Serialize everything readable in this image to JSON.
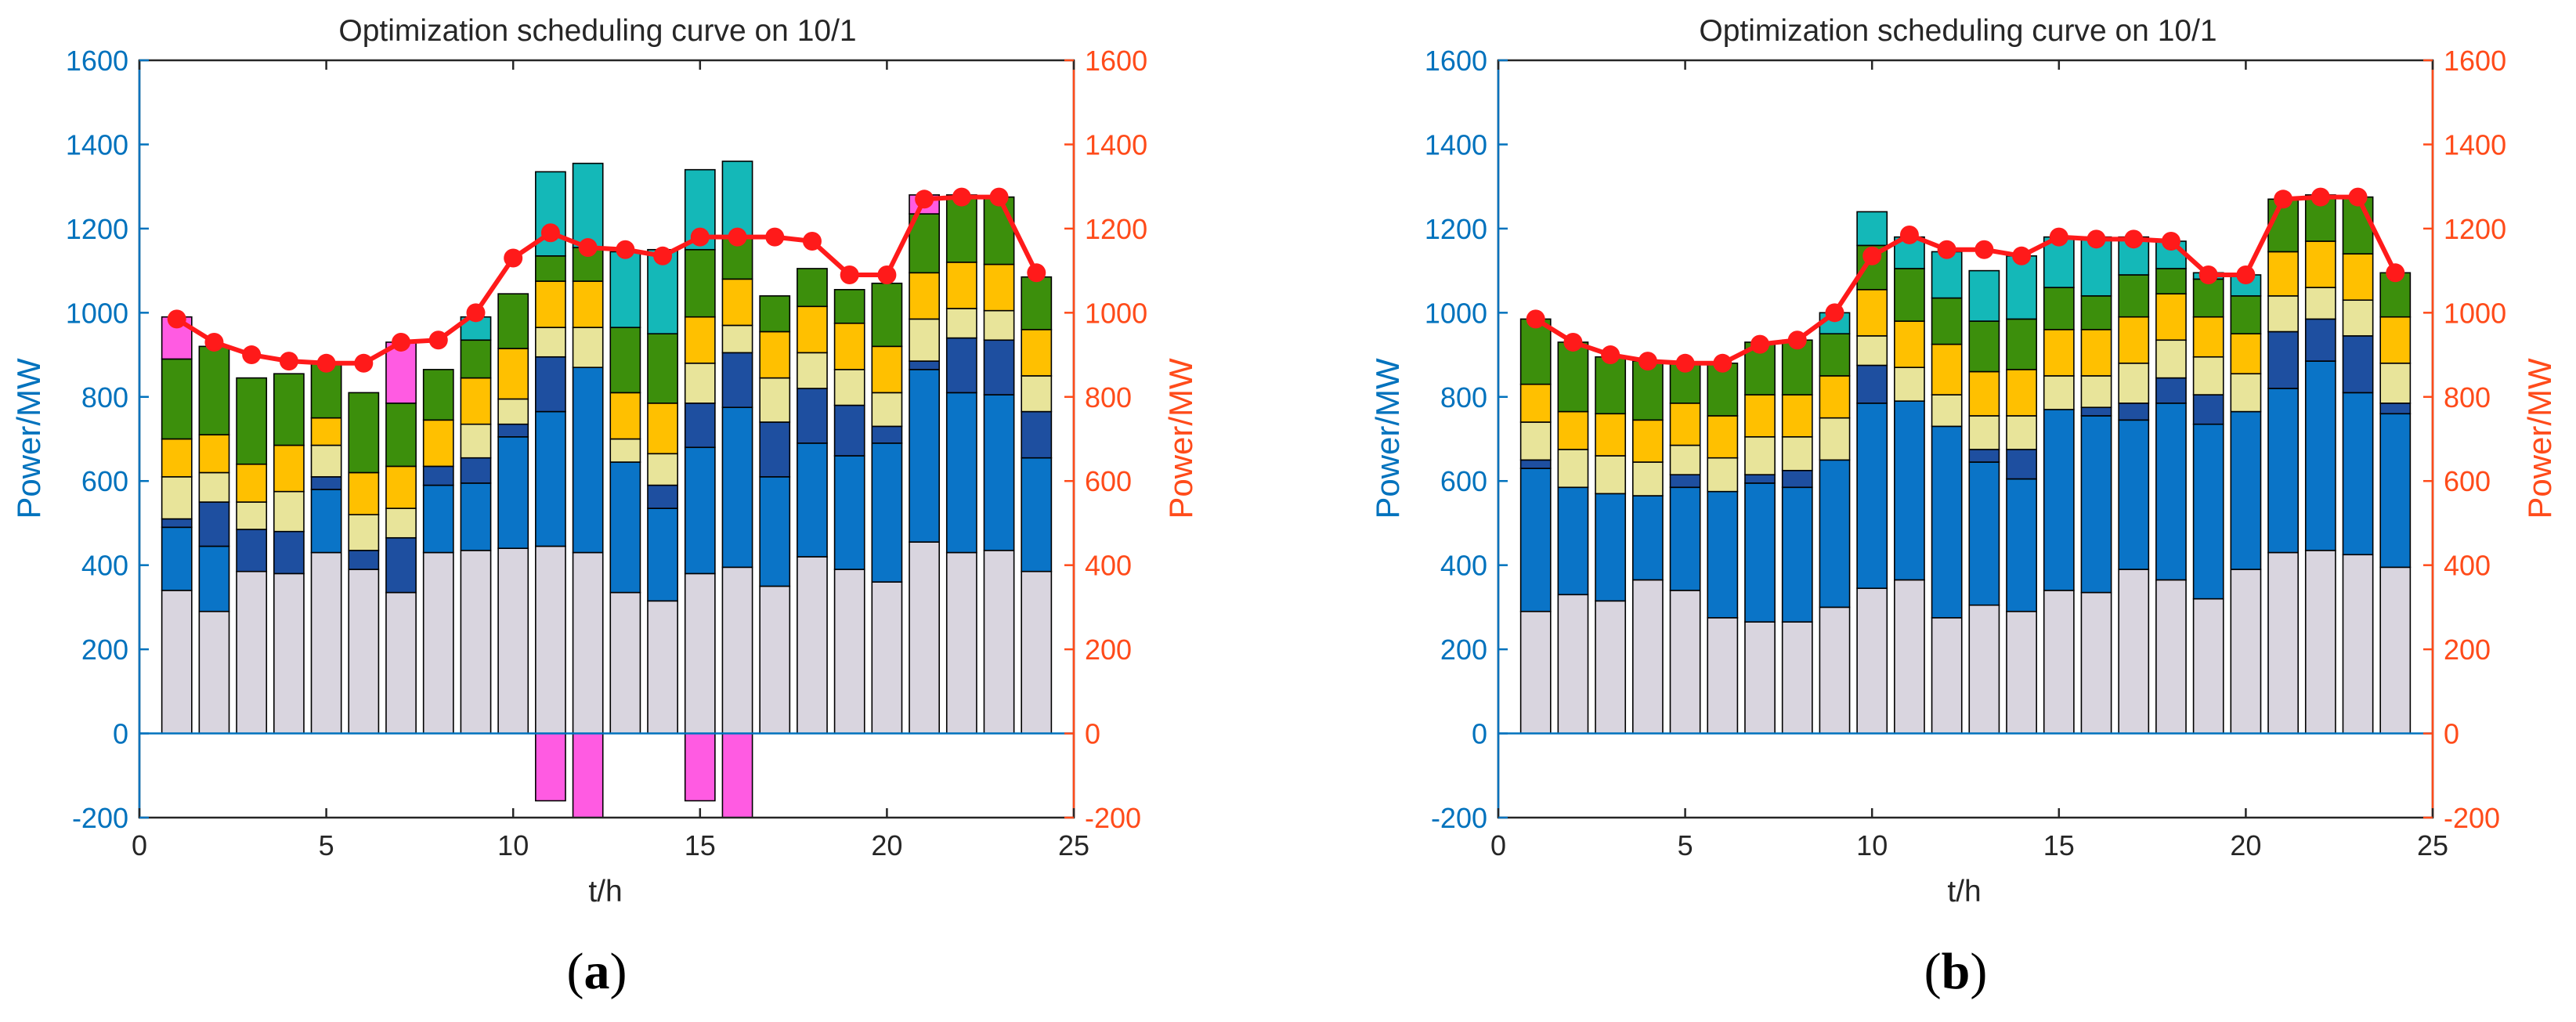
{
  "chart_data": [
    {
      "type": "bar",
      "subtype": "stacked-bar-with-line",
      "panel_label": "a",
      "title": "Optimization scheduling curve on 10/1",
      "xlabel": "t/h",
      "ylabel_left": "Power/MW",
      "ylabel_right": "Power/MW",
      "xlim": [
        0,
        25
      ],
      "ylim": [
        -200,
        1600
      ],
      "xticks": [
        "0",
        "5",
        "10",
        "15",
        "20",
        "25"
      ],
      "yticks_left": [
        "-200",
        "0",
        "200",
        "400",
        "600",
        "800",
        "1000",
        "1200",
        "1400",
        "1600"
      ],
      "yticks_right": [
        "-200",
        "0",
        "200",
        "400",
        "600",
        "800",
        "1000",
        "1200",
        "1400",
        "1600"
      ],
      "x": [
        1,
        2,
        3,
        4,
        5,
        6,
        7,
        8,
        9,
        10,
        11,
        12,
        13,
        14,
        15,
        16,
        17,
        18,
        19,
        20,
        21,
        22,
        23,
        24
      ],
      "series": [
        {
          "name": "series-1",
          "color": "#D9D5DF",
          "values": [
            340,
            290,
            385,
            380,
            430,
            390,
            335,
            430,
            435,
            440,
            445,
            430,
            335,
            315,
            380,
            395,
            350,
            420,
            390,
            360,
            455,
            430,
            435,
            385
          ]
        },
        {
          "name": "series-2",
          "color": "#0A74C7",
          "values": [
            150,
            155,
            0,
            0,
            150,
            0,
            0,
            160,
            160,
            265,
            320,
            440,
            310,
            220,
            300,
            380,
            260,
            270,
            270,
            330,
            410,
            380,
            370,
            270
          ]
        },
        {
          "name": "series-3",
          "color": "#1E4FA0",
          "values": [
            20,
            105,
            100,
            100,
            30,
            45,
            130,
            45,
            60,
            30,
            130,
            0,
            0,
            55,
            105,
            130,
            130,
            130,
            120,
            40,
            20,
            130,
            130,
            110
          ]
        },
        {
          "name": "series-4",
          "color": "#E8E49A",
          "values": [
            100,
            70,
            65,
            95,
            75,
            85,
            70,
            0,
            80,
            60,
            70,
            95,
            55,
            75,
            95,
            65,
            105,
            85,
            85,
            80,
            100,
            70,
            70,
            85
          ]
        },
        {
          "name": "series-5",
          "color": "#FFC000",
          "values": [
            90,
            90,
            90,
            110,
            65,
            100,
            100,
            110,
            110,
            120,
            110,
            110,
            110,
            120,
            110,
            110,
            110,
            110,
            110,
            110,
            110,
            110,
            110,
            110
          ]
        },
        {
          "name": "series-6",
          "color": "#3C8F0C",
          "values": [
            190,
            210,
            205,
            170,
            130,
            190,
            150,
            120,
            90,
            130,
            60,
            80,
            155,
            165,
            160,
            100,
            85,
            90,
            80,
            150,
            140,
            160,
            160,
            125
          ]
        },
        {
          "name": "series-7",
          "color": "#14B8B8",
          "values": [
            0,
            0,
            0,
            0,
            0,
            0,
            0,
            0,
            55,
            0,
            200,
            200,
            180,
            200,
            190,
            180,
            0,
            0,
            0,
            0,
            0,
            0,
            0,
            0
          ]
        },
        {
          "name": "series-8",
          "color": "#FF5BE2",
          "values": [
            100,
            0,
            0,
            0,
            0,
            0,
            145,
            0,
            0,
            0,
            -160,
            -200,
            0,
            0,
            -160,
            -200,
            0,
            0,
            0,
            0,
            45,
            0,
            0,
            0
          ]
        }
      ],
      "line": {
        "name": "load",
        "color": "#FF1A1A",
        "values": [
          985,
          930,
          900,
          885,
          880,
          880,
          930,
          935,
          1000,
          1130,
          1190,
          1155,
          1150,
          1135,
          1180,
          1180,
          1180,
          1170,
          1090,
          1090,
          1270,
          1275,
          1275,
          1095
        ]
      }
    },
    {
      "type": "bar",
      "subtype": "stacked-bar-with-line",
      "panel_label": "b",
      "title": "Optimization scheduling curve on 10/1",
      "xlabel": "t/h",
      "ylabel_left": "Power/MW",
      "ylabel_right": "Power/MW",
      "xlim": [
        0,
        25
      ],
      "ylim": [
        -200,
        1600
      ],
      "xticks": [
        "0",
        "5",
        "10",
        "15",
        "20",
        "25"
      ],
      "yticks_left": [
        "-200",
        "0",
        "200",
        "400",
        "600",
        "800",
        "1000",
        "1200",
        "1400",
        "1600"
      ],
      "yticks_right": [
        "-200",
        "0",
        "200",
        "400",
        "600",
        "800",
        "1000",
        "1200",
        "1400",
        "1600"
      ],
      "x": [
        1,
        2,
        3,
        4,
        5,
        6,
        7,
        8,
        9,
        10,
        11,
        12,
        13,
        14,
        15,
        16,
        17,
        18,
        19,
        20,
        21,
        22,
        23,
        24
      ],
      "series": [
        {
          "name": "series-1",
          "color": "#D9D5DF",
          "values": [
            290,
            330,
            315,
            365,
            340,
            275,
            265,
            265,
            300,
            345,
            365,
            275,
            305,
            290,
            340,
            335,
            390,
            365,
            320,
            390,
            430,
            435,
            425,
            395
          ]
        },
        {
          "name": "series-2",
          "color": "#0A74C7",
          "values": [
            340,
            255,
            255,
            200,
            245,
            300,
            330,
            320,
            350,
            440,
            425,
            455,
            340,
            315,
            430,
            420,
            355,
            420,
            415,
            375,
            390,
            450,
            385,
            365
          ]
        },
        {
          "name": "series-3",
          "color": "#1E4FA0",
          "values": [
            20,
            0,
            0,
            0,
            30,
            0,
            20,
            40,
            0,
            90,
            0,
            0,
            30,
            70,
            0,
            20,
            40,
            60,
            70,
            0,
            135,
            100,
            135,
            25
          ]
        },
        {
          "name": "series-4",
          "color": "#E8E49A",
          "values": [
            90,
            90,
            90,
            80,
            70,
            80,
            90,
            80,
            100,
            70,
            80,
            75,
            80,
            80,
            80,
            75,
            95,
            90,
            90,
            90,
            85,
            75,
            85,
            95
          ]
        },
        {
          "name": "series-5",
          "color": "#FFC000",
          "values": [
            90,
            90,
            100,
            100,
            100,
            100,
            100,
            100,
            100,
            110,
            110,
            120,
            105,
            110,
            110,
            110,
            110,
            110,
            95,
            95,
            105,
            110,
            110,
            110
          ]
        },
        {
          "name": "series-6",
          "color": "#3C8F0C",
          "values": [
            155,
            165,
            135,
            140,
            95,
            125,
            125,
            130,
            100,
            105,
            125,
            110,
            120,
            120,
            100,
            80,
            100,
            60,
            90,
            90,
            125,
            110,
            135,
            105
          ]
        },
        {
          "name": "series-7",
          "color": "#14B8B8",
          "values": [
            0,
            0,
            0,
            0,
            0,
            0,
            0,
            0,
            50,
            80,
            75,
            110,
            120,
            150,
            120,
            140,
            90,
            65,
            15,
            50,
            0,
            0,
            0,
            0
          ]
        },
        {
          "name": "series-8",
          "color": "#FF5BE2",
          "values": [
            0,
            0,
            0,
            0,
            0,
            0,
            0,
            0,
            0,
            0,
            0,
            0,
            0,
            0,
            0,
            0,
            0,
            0,
            0,
            0,
            0,
            0,
            0,
            0
          ]
        }
      ],
      "line": {
        "name": "load",
        "color": "#FF1A1A",
        "values": [
          985,
          930,
          900,
          885,
          880,
          880,
          925,
          935,
          1000,
          1135,
          1185,
          1150,
          1150,
          1135,
          1180,
          1175,
          1175,
          1170,
          1090,
          1090,
          1270,
          1275,
          1275,
          1095
        ]
      }
    }
  ]
}
